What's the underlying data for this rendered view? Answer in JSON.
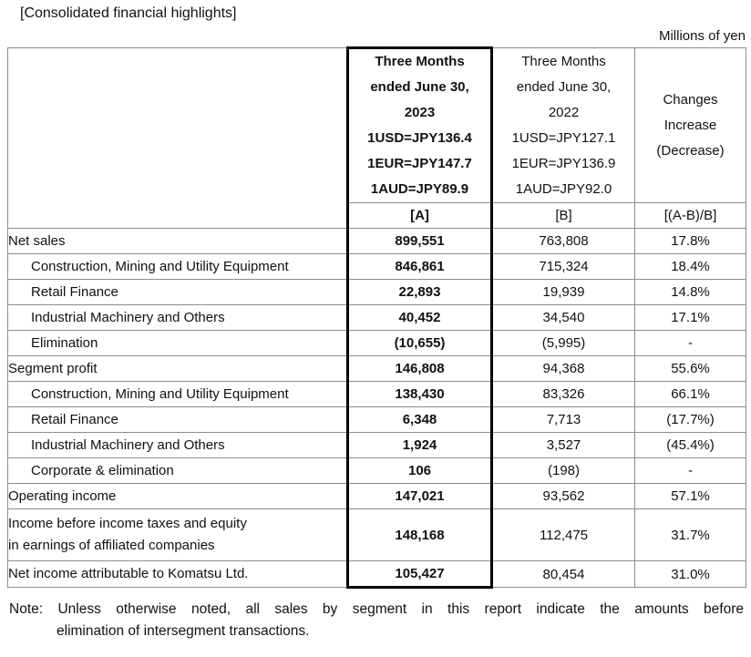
{
  "title": "[Consolidated financial highlights]",
  "units_label": "Millions of yen",
  "table": {
    "columns": {
      "current": {
        "lines": [
          "Three Months",
          "ended June 30,",
          "2023",
          "1USD=JPY136.4",
          "1EUR=JPY147.7",
          "1AUD=JPY89.9"
        ],
        "key": "[A]"
      },
      "prior": {
        "lines": [
          "Three Months",
          "ended June 30,",
          "2022",
          "1USD=JPY127.1",
          "1EUR=JPY136.9",
          "1AUD=JPY92.0"
        ],
        "key": "[B]"
      },
      "change": {
        "lines": [
          "Changes",
          "Increase",
          "(Decrease)"
        ],
        "key": "[(A-B)/B]"
      }
    },
    "rows": [
      {
        "label": "Net sales",
        "indent": false,
        "a": "899,551",
        "b": "763,808",
        "c": "17.8%"
      },
      {
        "label": "Construction, Mining and Utility Equipment",
        "indent": true,
        "a": "846,861",
        "b": "715,324",
        "c": "18.4%"
      },
      {
        "label": "Retail Finance",
        "indent": true,
        "a": "22,893",
        "b": "19,939",
        "c": "14.8%"
      },
      {
        "label": "Industrial Machinery and Others",
        "indent": true,
        "a": "40,452",
        "b": "34,540",
        "c": "17.1%"
      },
      {
        "label": "Elimination",
        "indent": true,
        "a": "(10,655)",
        "b": "(5,995)",
        "c": "-"
      },
      {
        "label": "Segment profit",
        "indent": false,
        "a": "146,808",
        "b": "94,368",
        "c": "55.6%"
      },
      {
        "label": "Construction, Mining and Utility Equipment",
        "indent": true,
        "a": "138,430",
        "b": "83,326",
        "c": "66.1%"
      },
      {
        "label": "Retail Finance",
        "indent": true,
        "a": "6,348",
        "b": "7,713",
        "c": "(17.7%)"
      },
      {
        "label": "Industrial Machinery and Others",
        "indent": true,
        "a": "1,924",
        "b": "3,527",
        "c": "(45.4%)"
      },
      {
        "label": "Corporate & elimination",
        "indent": true,
        "a": "106",
        "b": "(198)",
        "c": "-"
      },
      {
        "label": "Operating income",
        "indent": false,
        "a": "147,021",
        "b": "93,562",
        "c": "57.1%"
      },
      {
        "label": "Income before income taxes and equity",
        "label2": "in earnings of affiliated companies",
        "indent": false,
        "tall": true,
        "a": "148,168",
        "b": "112,475",
        "c": "31.7%"
      },
      {
        "label": "Net income attributable to Komatsu Ltd.",
        "indent": false,
        "a": "105,427",
        "b": "80,454",
        "c": "31.0%"
      }
    ]
  },
  "note": {
    "line1": "Note: Unless otherwise noted, all sales by segment in this report indicate the amounts before",
    "line2": "elimination of intersegment transactions."
  },
  "colors": {
    "text": "#111111",
    "thin_border": "#8c8c8c",
    "thick_border": "#000000",
    "background": "#ffffff"
  }
}
